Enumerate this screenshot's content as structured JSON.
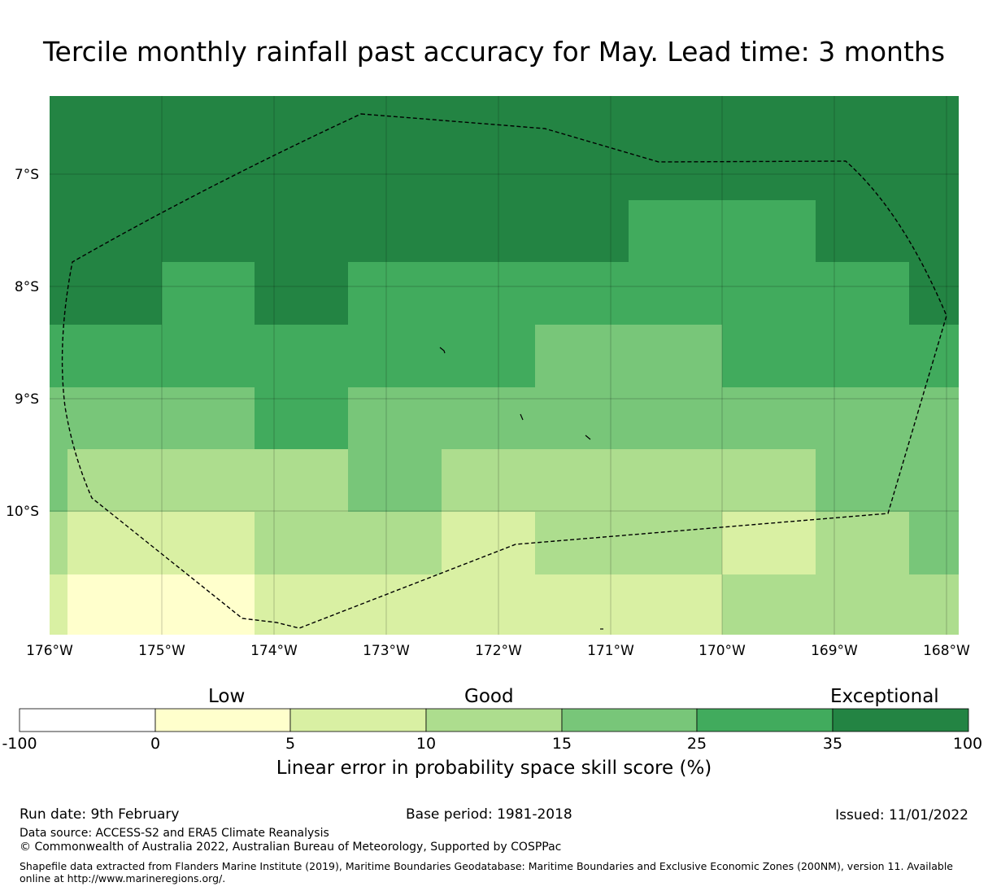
{
  "title": "Tercile monthly rainfall past accuracy for May. Lead time: 3 months",
  "map": {
    "lon_ticks": [
      "176°W",
      "175°W",
      "174°W",
      "173°W",
      "172°W",
      "171°W",
      "170°W",
      "169°W",
      "168°W"
    ],
    "lat_ticks": [
      "7°S",
      "8°S",
      "9°S",
      "10°S"
    ],
    "colors": {
      "neg": "#ffffff",
      "c0_5": "#ffffcc",
      "c5_10": "#d9f0a3",
      "c10_15": "#addd8e",
      "c15_25": "#78c679",
      "c25_35": "#41ab5d",
      "c35_100": "#238443"
    },
    "grid_skill_classes": [
      [
        6,
        6,
        6,
        6,
        6,
        6,
        6,
        6,
        6,
        6
      ],
      [
        6,
        6,
        6,
        6,
        6,
        6,
        6,
        5,
        5,
        5
      ],
      [
        6,
        6,
        6,
        6,
        6,
        6,
        6,
        5,
        5,
        5
      ],
      [
        6,
        5,
        6,
        5,
        5,
        5,
        5,
        5,
        5,
        5
      ],
      [
        5,
        5,
        5,
        5,
        5,
        5,
        4,
        4,
        4,
        5
      ],
      [
        4,
        4,
        5,
        4,
        4,
        4,
        4,
        4,
        4,
        4
      ],
      [
        4,
        3,
        3,
        3,
        4,
        3,
        3,
        3,
        3,
        3
      ],
      [
        3,
        2,
        2,
        2,
        2,
        2,
        3,
        3,
        3,
        3
      ],
      [
        2,
        1,
        1,
        2,
        2,
        2,
        2,
        2,
        2,
        2
      ]
    ]
  },
  "colorbar": {
    "categories": [
      "Low",
      "Good",
      "Exceptional"
    ],
    "bounds": [
      "-100",
      "0",
      "5",
      "10",
      "15",
      "25",
      "35",
      "100"
    ],
    "title": "Linear error in probability space skill score (%)"
  },
  "footer": {
    "run_date": "Run date: 9th February",
    "base_period": "Base period: 1981-2018",
    "issued": "Issued: 11/01/2022",
    "data_source": "Data source: ACCESS-S2 and ERA5 Climate Reanalysis",
    "copyright": "© Commonwealth of Australia 2022, Australian Bureau of Meteorology, Supported by COSPPac",
    "shapefile": "Shapefile data extracted from Flanders Marine Institute (2019), Maritime Boundaries Geodatabase: Maritime Boundaries and Exclusive Economic Zones (200NM), version 11. Available online at http://www.marineregions.org/."
  }
}
